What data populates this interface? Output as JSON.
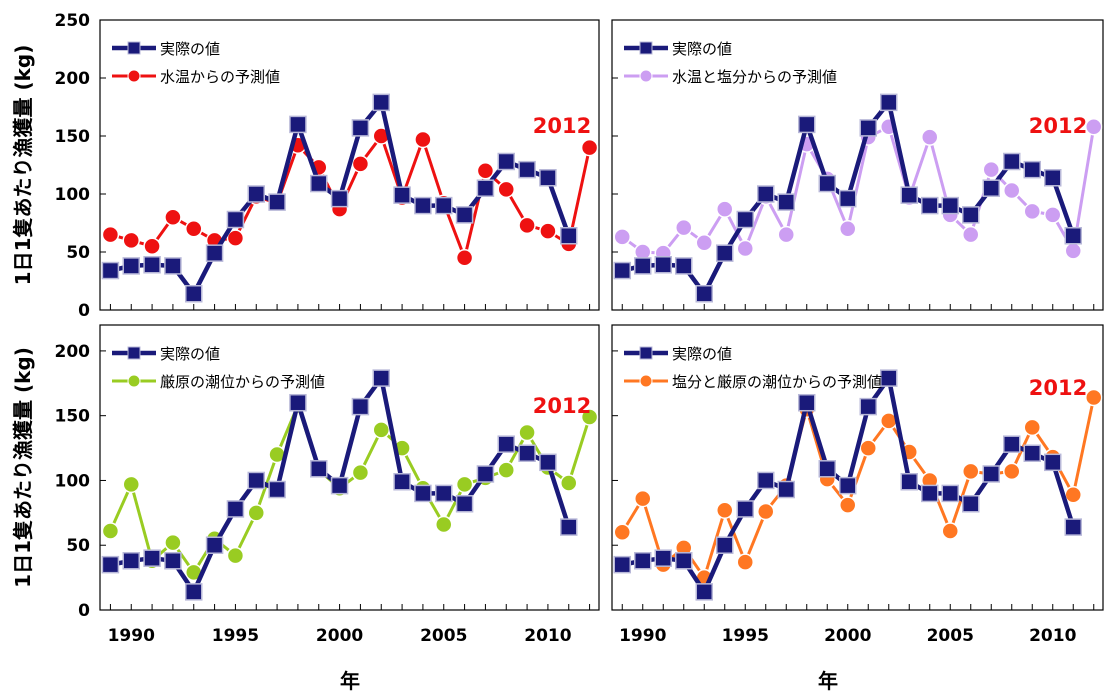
{
  "chart_data": [
    {
      "type": "line",
      "position": "top-left",
      "x": [
        1989,
        1990,
        1991,
        1992,
        1993,
        1994,
        1995,
        1996,
        1997,
        1998,
        1999,
        2000,
        2001,
        2002,
        2003,
        2004,
        2005,
        2006,
        2007,
        2008,
        2009,
        2010,
        2011,
        2012
      ],
      "xlim": [
        1988.5,
        2012.5
      ],
      "ylim": [
        0,
        250
      ],
      "yticks": [
        0,
        50,
        100,
        150,
        200,
        250
      ],
      "xticks": [],
      "ylabel": "1日1隻あたり漁獲量 (kg)",
      "xlabel": "",
      "annotation": "2012",
      "legend": "top-left",
      "series": [
        {
          "name": "実際の値",
          "marker": "square",
          "color": "#1a1a7a",
          "values": [
            34,
            38,
            39,
            38,
            14,
            49,
            78,
            100,
            93,
            160,
            109,
            96,
            157,
            179,
            99,
            90,
            90,
            82,
            105,
            128,
            121,
            114,
            64,
            null
          ]
        },
        {
          "name": "水温からの予測値",
          "marker": "circle",
          "color": "#ee1111",
          "values": [
            65,
            60,
            55,
            80,
            70,
            60,
            62,
            98,
            92,
            142,
            123,
            87,
            126,
            150,
            97,
            147,
            92,
            45,
            120,
            104,
            73,
            68,
            57,
            140
          ]
        }
      ]
    },
    {
      "type": "line",
      "position": "top-right",
      "x": [
        1989,
        1990,
        1991,
        1992,
        1993,
        1994,
        1995,
        1996,
        1997,
        1998,
        1999,
        2000,
        2001,
        2002,
        2003,
        2004,
        2005,
        2006,
        2007,
        2008,
        2009,
        2010,
        2011,
        2012
      ],
      "xlim": [
        1988.5,
        2012.5
      ],
      "ylim": [
        0,
        250
      ],
      "yticks": [
        0,
        50,
        100,
        150,
        200,
        250
      ],
      "xticks": [],
      "ylabel": "",
      "xlabel": "",
      "annotation": "2012",
      "legend": "top-left",
      "series": [
        {
          "name": "実際の値",
          "marker": "square",
          "color": "#1a1a7a",
          "values": [
            34,
            38,
            39,
            38,
            14,
            49,
            78,
            100,
            93,
            160,
            109,
            96,
            157,
            179,
            99,
            90,
            90,
            82,
            105,
            128,
            121,
            114,
            64,
            null
          ]
        },
        {
          "name": "水温と塩分からの予測値",
          "marker": "circle",
          "color": "#cc9ef2",
          "values": [
            63,
            50,
            49,
            71,
            58,
            87,
            53,
            98,
            65,
            143,
            113,
            70,
            149,
            158,
            97,
            149,
            82,
            65,
            121,
            103,
            85,
            82,
            51,
            158
          ]
        }
      ]
    },
    {
      "type": "line",
      "position": "bottom-left",
      "x": [
        1989,
        1990,
        1991,
        1992,
        1993,
        1994,
        1995,
        1996,
        1997,
        1998,
        1999,
        2000,
        2001,
        2002,
        2003,
        2004,
        2005,
        2006,
        2007,
        2008,
        2009,
        2010,
        2011,
        2012
      ],
      "xlim": [
        1988.5,
        2012.5
      ],
      "ylim": [
        0,
        220
      ],
      "yticks": [
        0,
        50,
        100,
        150,
        200
      ],
      "xticks": [
        1990,
        1995,
        2000,
        2005,
        2010
      ],
      "ylabel": "1日1隻あたり漁獲量 (kg)",
      "xlabel": "年",
      "annotation": "2012",
      "legend": "top-left",
      "series": [
        {
          "name": "実際の値",
          "marker": "square",
          "color": "#1a1a7a",
          "values": [
            35,
            38,
            40,
            38,
            14,
            50,
            78,
            100,
            93,
            160,
            109,
            96,
            157,
            179,
            99,
            90,
            90,
            82,
            105,
            128,
            121,
            114,
            64,
            null
          ]
        },
        {
          "name": "厳原の潮位からの予測値",
          "marker": "circle",
          "color": "#99cc22",
          "values": [
            61,
            97,
            38,
            52,
            29,
            55,
            42,
            75,
            120,
            158,
            108,
            94,
            106,
            139,
            125,
            94,
            66,
            97,
            102,
            108,
            137,
            110,
            98,
            149
          ]
        }
      ]
    },
    {
      "type": "line",
      "position": "bottom-right",
      "x": [
        1989,
        1990,
        1991,
        1992,
        1993,
        1994,
        1995,
        1996,
        1997,
        1998,
        1999,
        2000,
        2001,
        2002,
        2003,
        2004,
        2005,
        2006,
        2007,
        2008,
        2009,
        2010,
        2011,
        2012
      ],
      "xlim": [
        1988.5,
        2012.5
      ],
      "ylim": [
        0,
        220
      ],
      "yticks": [
        0,
        50,
        100,
        150,
        200
      ],
      "xticks": [
        1990,
        1995,
        2000,
        2005,
        2010
      ],
      "ylabel": "",
      "xlabel": "年",
      "annotation": "2012",
      "legend": "top-left",
      "series": [
        {
          "name": "実際の値",
          "marker": "square",
          "color": "#1a1a7a",
          "values": [
            35,
            38,
            40,
            38,
            14,
            50,
            78,
            100,
            93,
            160,
            109,
            96,
            157,
            179,
            99,
            90,
            90,
            82,
            105,
            128,
            121,
            114,
            64,
            null
          ]
        },
        {
          "name": "塩分と厳原の潮位からの予測値",
          "marker": "circle",
          "color": "#ff7722",
          "values": [
            60,
            86,
            35,
            48,
            25,
            77,
            37,
            76,
            96,
            155,
            101,
            81,
            125,
            146,
            122,
            100,
            61,
            107,
            105,
            107,
            141,
            118,
            89,
            164
          ]
        }
      ]
    }
  ],
  "colors": {
    "annotation": "#ee1111",
    "axis": "#000000"
  }
}
